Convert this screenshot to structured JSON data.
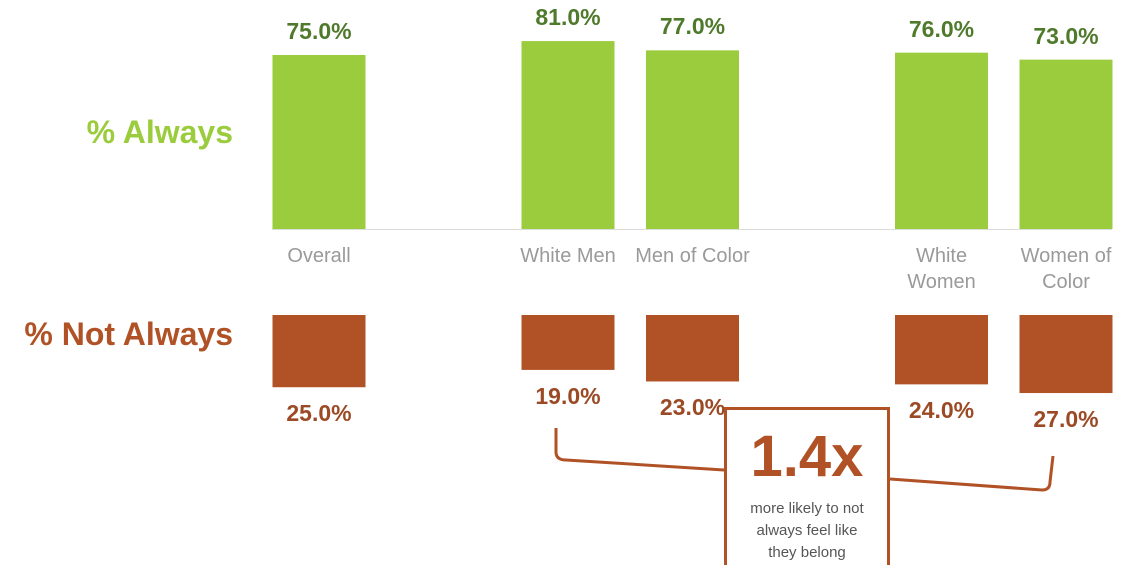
{
  "chart_data": {
    "type": "bar",
    "categories": [
      "Overall",
      "White Men",
      "Men of Color",
      "White Women",
      "Women of Color"
    ],
    "row_labels": [
      "% Always",
      "% Not Always"
    ],
    "series": [
      {
        "name": "% Always",
        "color": "#9bcc3d",
        "values": [
          75,
          81,
          77,
          76,
          73
        ],
        "value_labels": [
          "75.0%",
          "81.0%",
          "77.0%",
          "76.0%",
          "73.0%"
        ]
      },
      {
        "name": "% Not Always",
        "color": "#b05226",
        "values": [
          25,
          19,
          23,
          24,
          27
        ],
        "value_labels": [
          "25.0%",
          "19.0%",
          "23.0%",
          "24.0%",
          "27.0%"
        ]
      }
    ],
    "annotation": {
      "headline": "1.4x",
      "text": "more likely to not always feel like they belong"
    }
  }
}
